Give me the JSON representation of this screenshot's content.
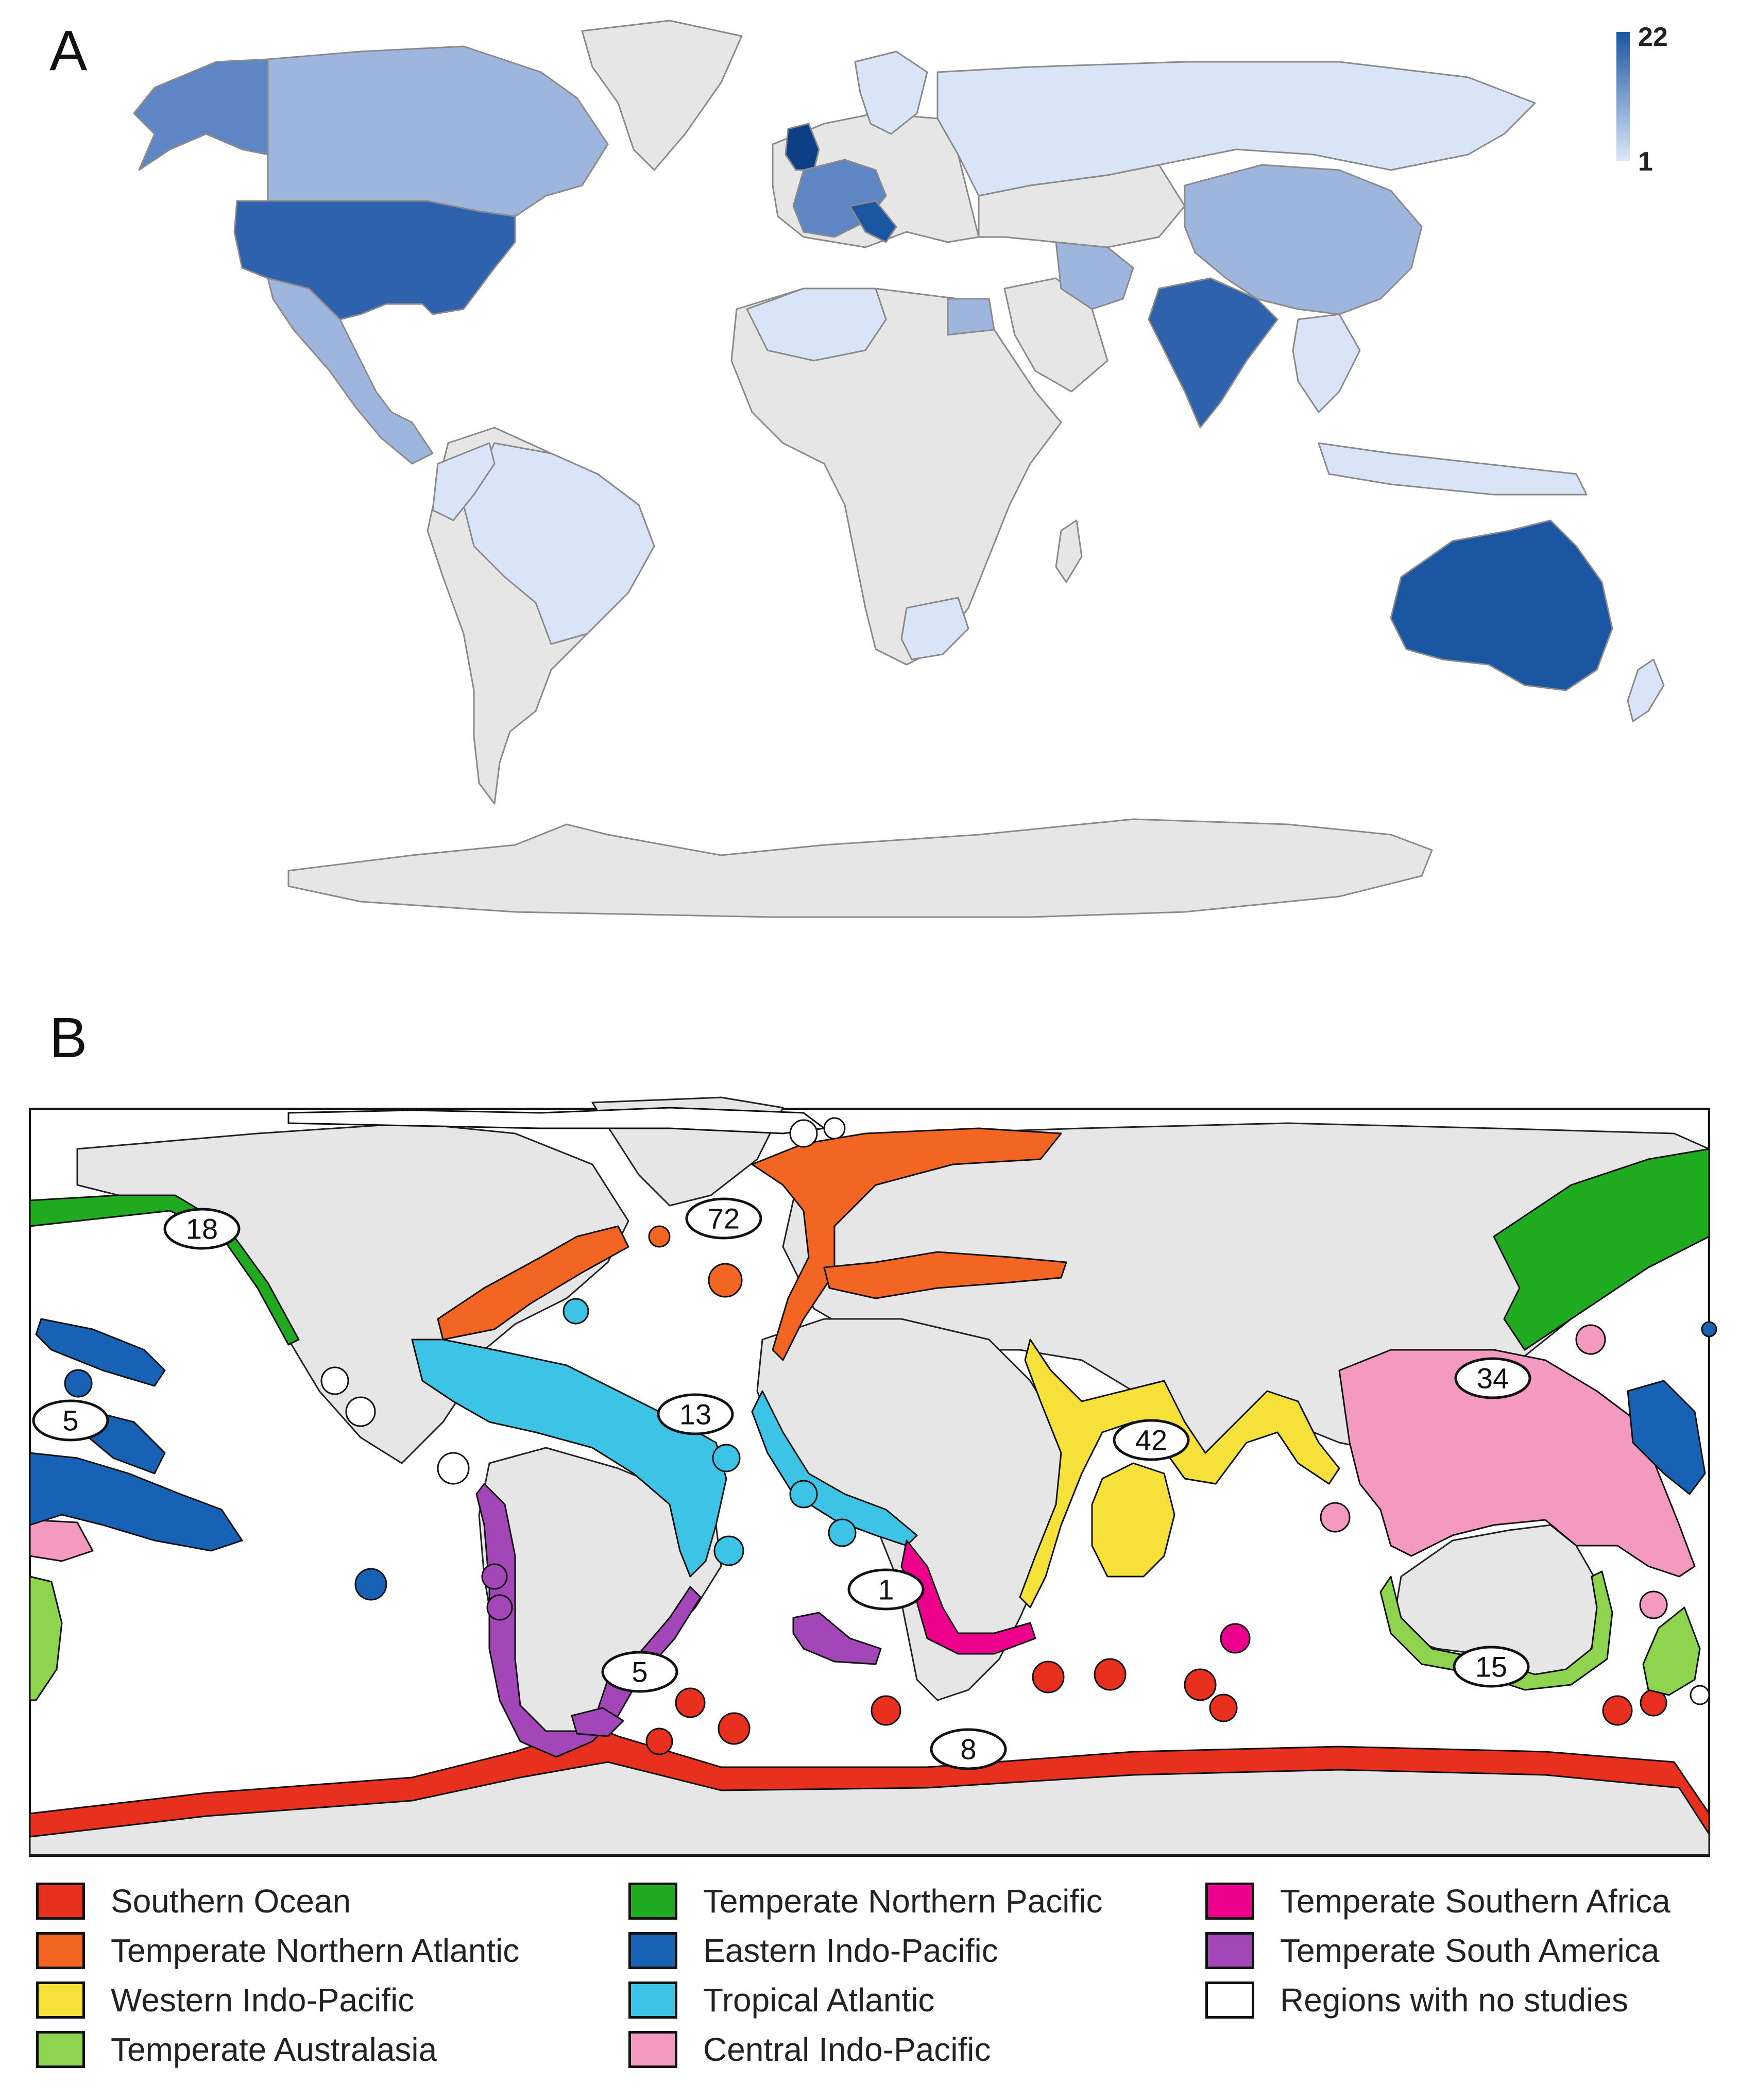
{
  "panels": {
    "a_label": "A",
    "b_label": "B"
  },
  "colors": {
    "land_none": "#e6e6e6",
    "choropleth_dark": "#1b56a2",
    "choropleth_mid": "#9eb6dd",
    "choropleth_light": "#d9e5f7",
    "choropleth_medium_dark": "#5f86c4"
  },
  "scale": {
    "max_label": "22",
    "min_label": "1",
    "max": 22,
    "min": 1
  },
  "region_counts": [
    {
      "region": "Temperate Northern Pacific",
      "count_label": "18",
      "count": 18
    },
    {
      "region": "Temperate Northern Atlantic",
      "count_label": "72",
      "count": 72
    },
    {
      "region": "Eastern Indo-Pacific",
      "count_label": "5",
      "count": 5
    },
    {
      "region": "Tropical Atlantic",
      "count_label": "13",
      "count": 13
    },
    {
      "region": "Western Indo-Pacific",
      "count_label": "42",
      "count": 42
    },
    {
      "region": "Central Indo-Pacific",
      "count_label": "34",
      "count": 34
    },
    {
      "region": "Temperate Southern Africa",
      "count_label": "1",
      "count": 1
    },
    {
      "region": "Temperate South America",
      "count_label": "5",
      "count": 5
    },
    {
      "region": "Temperate Australasia",
      "count_label": "15",
      "count": 15
    },
    {
      "region": "Southern Ocean",
      "count_label": "8",
      "count": 8
    }
  ],
  "legend": [
    {
      "label": "Southern Ocean",
      "color": "#e8301f"
    },
    {
      "label": "Temperate Northern Atlantic",
      "color": "#f26522"
    },
    {
      "label": "Western Indo-Pacific",
      "color": "#f6e13a"
    },
    {
      "label": "Temperate Australasia",
      "color": "#8fd44f"
    },
    {
      "label": "Temperate Northern Pacific",
      "color": "#1faa1f"
    },
    {
      "label": "Eastern Indo-Pacific",
      "color": "#1762b5"
    },
    {
      "label": "Tropical Atlantic",
      "color": "#3cc3e6"
    },
    {
      "label": "Central Indo-Pacific",
      "color": "#f49ac1"
    },
    {
      "label": "Temperate Southern Africa",
      "color": "#ec008c"
    },
    {
      "label": "Temperate South America",
      "color": "#a347b8"
    },
    {
      "label": "Regions with no studies",
      "color": "#ffffff"
    }
  ]
}
